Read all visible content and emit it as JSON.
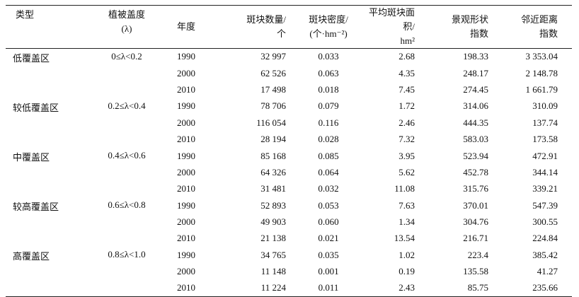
{
  "table": {
    "header": [
      [
        "类型"
      ],
      [
        "植被盖度",
        "(λ)"
      ],
      [
        "年度"
      ],
      [
        "斑块数量/",
        "个"
      ],
      [
        "斑块密度/",
        "(个·hm⁻²)"
      ],
      [
        "平均斑块面积/",
        "hm²"
      ],
      [
        "景观形状",
        "指数"
      ],
      [
        "邻近距离",
        "指数"
      ]
    ],
    "groups": [
      {
        "type": "低覆盖区",
        "coverage": "0≤λ<0.2",
        "rows": [
          [
            "1990",
            "32 997",
            "0.033",
            "2.68",
            "198.33",
            "3 353.04"
          ],
          [
            "2000",
            "62 526",
            "0.063",
            "4.35",
            "248.17",
            "2 148.78"
          ],
          [
            "2010",
            "17 498",
            "0.018",
            "7.45",
            "274.45",
            "1 661.79"
          ]
        ]
      },
      {
        "type": "较低覆盖区",
        "coverage": "0.2≤λ<0.4",
        "rows": [
          [
            "1990",
            "78 706",
            "0.079",
            "1.72",
            "314.06",
            "310.09"
          ],
          [
            "2000",
            "116 054",
            "0.116",
            "2.46",
            "444.35",
            "137.74"
          ],
          [
            "2010",
            "28 194",
            "0.028",
            "7.32",
            "583.03",
            "173.58"
          ]
        ]
      },
      {
        "type": "中覆盖区",
        "coverage": "0.4≤λ<0.6",
        "rows": [
          [
            "1990",
            "85 168",
            "0.085",
            "3.95",
            "523.94",
            "472.91"
          ],
          [
            "2000",
            "64 326",
            "0.064",
            "5.62",
            "452.78",
            "344.14"
          ],
          [
            "2010",
            "31 481",
            "0.032",
            "11.08",
            "315.76",
            "339.21"
          ]
        ]
      },
      {
        "type": "较高覆盖区",
        "coverage": "0.6≤λ<0.8",
        "rows": [
          [
            "1990",
            "52 893",
            "0.053",
            "7.63",
            "370.01",
            "547.39"
          ],
          [
            "2000",
            "49 903",
            "0.060",
            "1.34",
            "304.76",
            "300.55"
          ],
          [
            "2010",
            "21 138",
            "0.021",
            "13.54",
            "216.71",
            "224.84"
          ]
        ]
      },
      {
        "type": "高覆盖区",
        "coverage": "0.8≤λ<1.0",
        "rows": [
          [
            "1990",
            "34 765",
            "0.035",
            "1.02",
            "223.4",
            "385.42"
          ],
          [
            "2000",
            "11 148",
            "0.001",
            "0.19",
            "135.58",
            "41.27"
          ],
          [
            "2010",
            "11 224",
            "0.011",
            "2.43",
            "85.75",
            "235.66"
          ]
        ]
      }
    ]
  }
}
